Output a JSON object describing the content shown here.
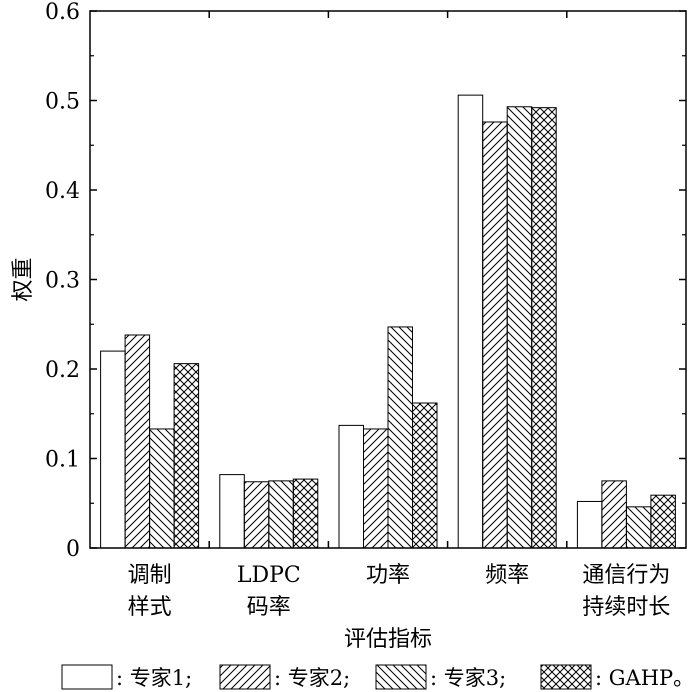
{
  "chart_data": {
    "type": "bar",
    "title": "",
    "xlabel": "评估指标",
    "ylabel": "权重",
    "ylim": [
      0,
      0.6
    ],
    "yticks": [
      "0",
      "0.1",
      "0.2",
      "0.3",
      "0.4",
      "0.5",
      "0.6"
    ],
    "categories": [
      [
        "调制",
        "样式"
      ],
      [
        "LDPC",
        "码率"
      ],
      [
        "功率"
      ],
      [
        "频率"
      ],
      [
        "通信行为",
        "持续时长"
      ]
    ],
    "series": [
      {
        "name": "专家1",
        "pattern": "none",
        "values": [
          0.22,
          0.082,
          0.137,
          0.506,
          0.052
        ]
      },
      {
        "name": "专家2",
        "pattern": "diag-fwd",
        "values": [
          0.238,
          0.074,
          0.133,
          0.476,
          0.075
        ]
      },
      {
        "name": "专家3",
        "pattern": "diag-back",
        "values": [
          0.133,
          0.075,
          0.247,
          0.493,
          0.046
        ]
      },
      {
        "name": "GAHP",
        "pattern": "cross",
        "values": [
          0.206,
          0.077,
          0.162,
          0.492,
          0.059
        ]
      }
    ],
    "legend": {
      "placement": "bottom",
      "entries": [
        ": 专家1;",
        ": 专家2;",
        ": 专家3;",
        ": GAHP。"
      ]
    },
    "grid": false
  }
}
